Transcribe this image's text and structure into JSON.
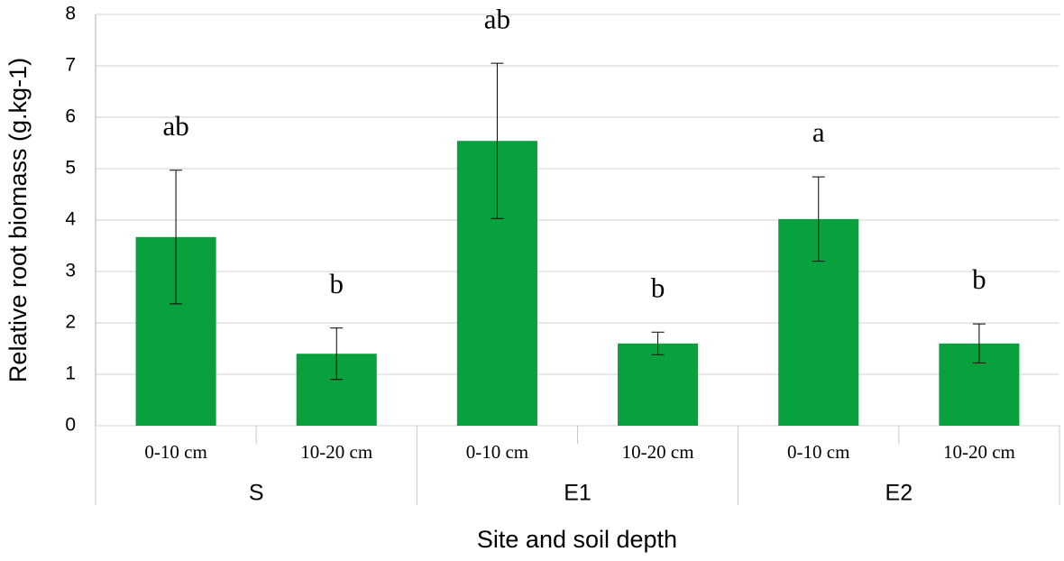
{
  "chart_data": {
    "type": "bar",
    "y_label": "Relative root biomass (g.kg-1)",
    "x_label": "Site and soil depth",
    "categories": [
      "0-10 cm",
      "10-20 cm",
      "0-10 cm",
      "10-20 cm",
      "0-10 cm",
      "10-20 cm"
    ],
    "groups": [
      "S",
      "E1",
      "E2"
    ],
    "values": [
      3.67,
      1.4,
      5.54,
      1.6,
      4.02,
      1.6
    ],
    "errors": [
      1.3,
      0.5,
      1.51,
      0.22,
      0.82,
      0.38
    ],
    "annotations": [
      "ab",
      "b",
      "ab",
      "b",
      "a",
      "b"
    ],
    "color": "#09a03e",
    "ylim": [
      0,
      8
    ],
    "yticks": [
      0,
      1,
      2,
      3,
      4,
      5,
      6,
      7,
      8
    ],
    "grid": true
  }
}
